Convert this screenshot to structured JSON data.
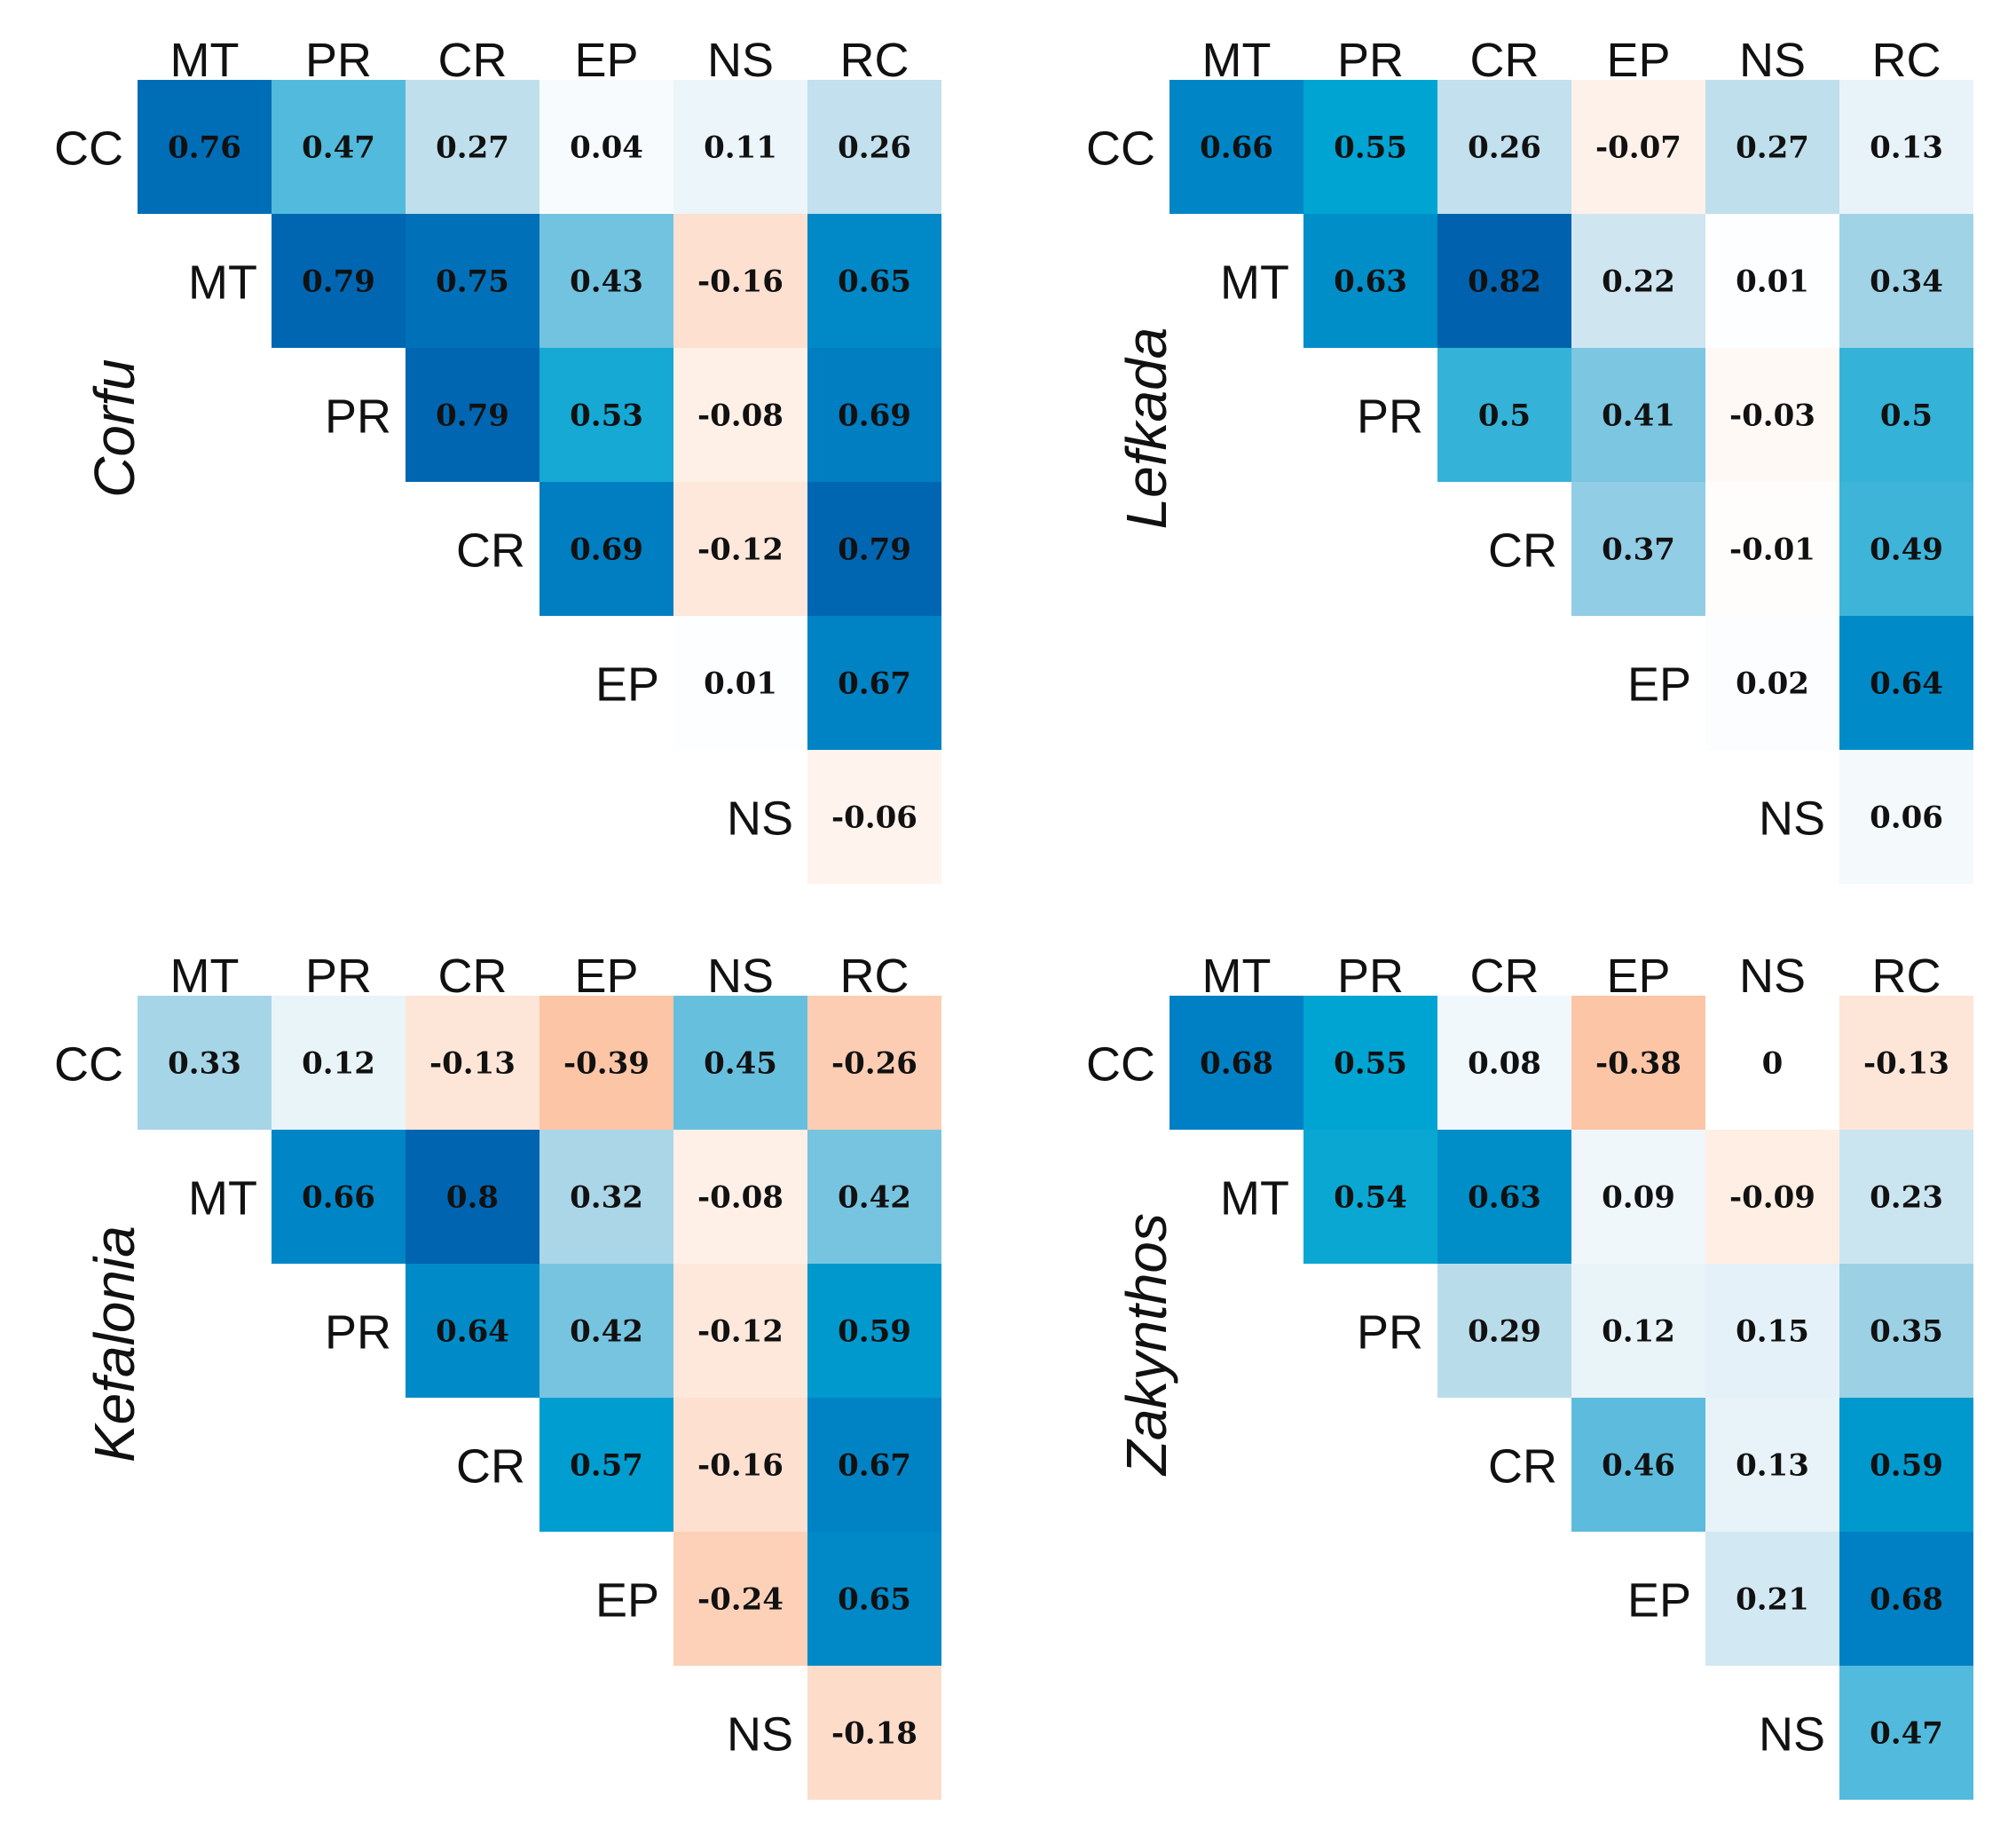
{
  "chart_data": [
    {
      "type": "heatmap",
      "title": "Corfu",
      "row_labels": [
        "CC",
        "MT",
        "PR",
        "CR",
        "EP",
        "NS"
      ],
      "col_labels": [
        "MT",
        "PR",
        "CR",
        "EP",
        "NS",
        "RC"
      ],
      "values": [
        [
          0.76,
          0.47,
          0.27,
          0.04,
          0.11,
          0.26
        ],
        [
          null,
          0.79,
          0.75,
          0.43,
          -0.16,
          0.65
        ],
        [
          null,
          null,
          0.79,
          0.53,
          -0.08,
          0.69
        ],
        [
          null,
          null,
          null,
          0.69,
          -0.12,
          0.79
        ],
        [
          null,
          null,
          null,
          null,
          0.01,
          0.67
        ],
        [
          null,
          null,
          null,
          null,
          null,
          -0.06
        ]
      ]
    },
    {
      "type": "heatmap",
      "title": "Lefkada",
      "row_labels": [
        "CC",
        "MT",
        "PR",
        "CR",
        "EP",
        "NS"
      ],
      "col_labels": [
        "MT",
        "PR",
        "CR",
        "EP",
        "NS",
        "RC"
      ],
      "values": [
        [
          0.66,
          0.55,
          0.26,
          -0.07,
          0.27,
          0.13
        ],
        [
          null,
          0.63,
          0.82,
          0.22,
          0.01,
          0.34
        ],
        [
          null,
          null,
          0.5,
          0.41,
          -0.03,
          0.5
        ],
        [
          null,
          null,
          null,
          0.37,
          -0.01,
          0.49
        ],
        [
          null,
          null,
          null,
          null,
          0.02,
          0.64
        ],
        [
          null,
          null,
          null,
          null,
          null,
          0.06
        ]
      ]
    },
    {
      "type": "heatmap",
      "title": "Kefalonia",
      "row_labels": [
        "CC",
        "MT",
        "PR",
        "CR",
        "EP",
        "NS"
      ],
      "col_labels": [
        "MT",
        "PR",
        "CR",
        "EP",
        "NS",
        "RC"
      ],
      "values": [
        [
          0.33,
          0.12,
          -0.13,
          -0.39,
          0.45,
          -0.26
        ],
        [
          null,
          0.66,
          0.8,
          0.32,
          -0.08,
          0.42
        ],
        [
          null,
          null,
          0.64,
          0.42,
          -0.12,
          0.59
        ],
        [
          null,
          null,
          null,
          0.57,
          -0.16,
          0.67
        ],
        [
          null,
          null,
          null,
          null,
          -0.24,
          0.65
        ],
        [
          null,
          null,
          null,
          null,
          null,
          -0.18
        ]
      ]
    },
    {
      "type": "heatmap",
      "title": "Zakynthos",
      "row_labels": [
        "CC",
        "MT",
        "PR",
        "CR",
        "EP",
        "NS"
      ],
      "col_labels": [
        "MT",
        "PR",
        "CR",
        "EP",
        "NS",
        "RC"
      ],
      "values": [
        [
          0.68,
          0.55,
          0.08,
          -0.38,
          0,
          -0.13
        ],
        [
          null,
          0.54,
          0.63,
          0.09,
          -0.09,
          0.23
        ],
        [
          null,
          null,
          0.29,
          0.12,
          0.15,
          0.35
        ],
        [
          null,
          null,
          null,
          0.46,
          0.13,
          0.59
        ],
        [
          null,
          null,
          null,
          null,
          0.21,
          0.68
        ],
        [
          null,
          null,
          null,
          null,
          null,
          0.47
        ]
      ]
    }
  ]
}
